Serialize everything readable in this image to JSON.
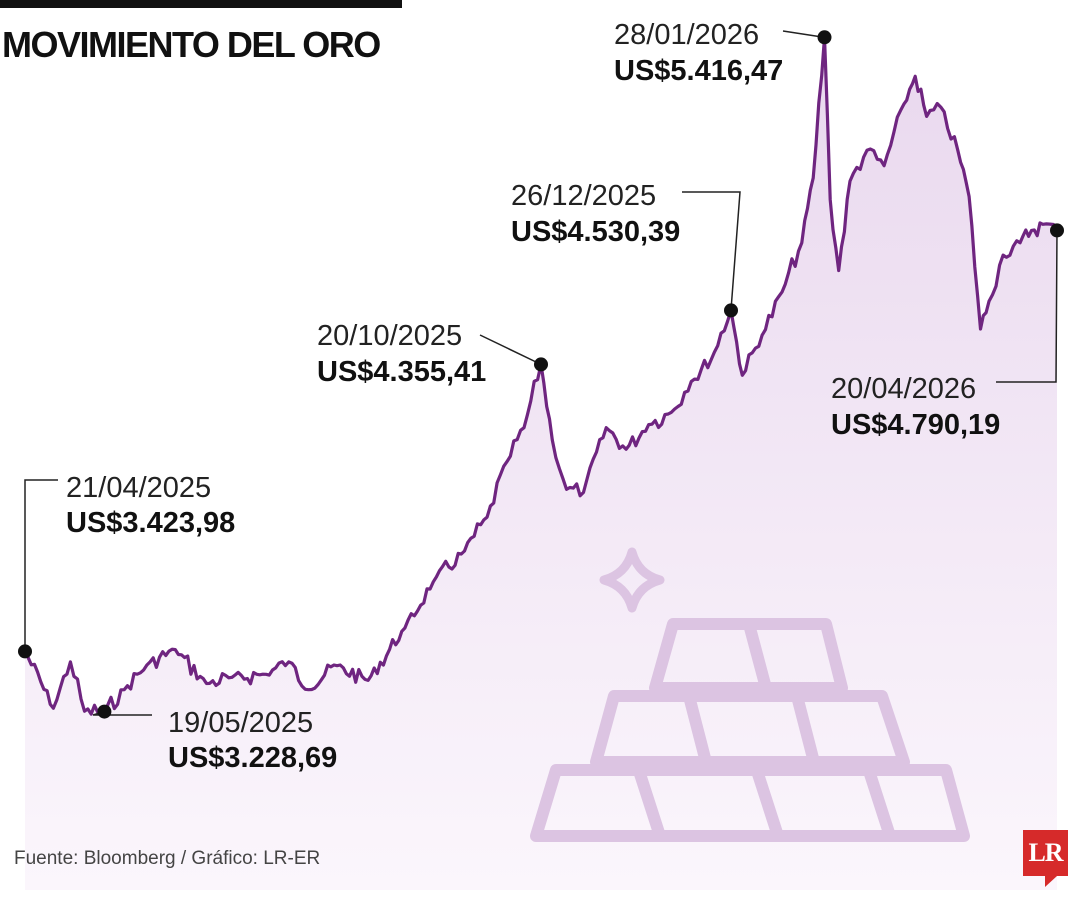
{
  "header": {
    "title": "MOVIMIENTO DEL ORO"
  },
  "footer": {
    "source": "Fuente: Bloomberg / Gráfico: LR-ER",
    "logo_text": "LR"
  },
  "colors": {
    "line": "#6f2580",
    "fill_top": "#e9d8ee",
    "fill_bottom": "#fbf6fc",
    "illustration": "#dcc4e2",
    "marker": "#111111",
    "logo": "#d62a2a"
  },
  "illustration": {
    "icons": [
      "sparkle-icon",
      "gold-bars-icon"
    ]
  },
  "chart_data": {
    "type": "area",
    "title": "MOVIMIENTO DEL ORO",
    "xlabel": "",
    "ylabel": "",
    "x_range": [
      "2025-04-21",
      "2026-04-20"
    ],
    "ylim": [
      2650,
      5450
    ],
    "grid": false,
    "legend": "none",
    "series": [
      {
        "points": [
          [
            "2025-04-21",
            3423.98
          ],
          [
            "2025-05-01",
            3240
          ],
          [
            "2025-05-07",
            3390
          ],
          [
            "2025-05-12",
            3230
          ],
          [
            "2025-05-19",
            3228.69
          ],
          [
            "2025-05-26",
            3300
          ],
          [
            "2025-06-03",
            3380
          ],
          [
            "2025-06-13",
            3430
          ],
          [
            "2025-06-24",
            3320
          ],
          [
            "2025-07-03",
            3340
          ],
          [
            "2025-07-15",
            3350
          ],
          [
            "2025-07-23",
            3390
          ],
          [
            "2025-07-30",
            3300
          ],
          [
            "2025-08-08",
            3380
          ],
          [
            "2025-08-20",
            3330
          ],
          [
            "2025-09-02",
            3500
          ],
          [
            "2025-09-12",
            3650
          ],
          [
            "2025-09-23",
            3750
          ],
          [
            "2025-10-01",
            3860
          ],
          [
            "2025-10-08",
            4040
          ],
          [
            "2025-10-14",
            4150
          ],
          [
            "2025-10-20",
            4355.41
          ],
          [
            "2025-10-24",
            4110
          ],
          [
            "2025-10-29",
            3950
          ],
          [
            "2025-11-04",
            3940
          ],
          [
            "2025-11-12",
            4150
          ],
          [
            "2025-11-19",
            4080
          ],
          [
            "2025-11-27",
            4160
          ],
          [
            "2025-12-05",
            4200
          ],
          [
            "2025-12-12",
            4300
          ],
          [
            "2025-12-19",
            4370
          ],
          [
            "2025-12-26",
            4530.39
          ],
          [
            "2025-12-30",
            4320
          ],
          [
            "2026-01-06",
            4450
          ],
          [
            "2026-01-13",
            4590
          ],
          [
            "2026-01-20",
            4750
          ],
          [
            "2026-01-24",
            4960
          ],
          [
            "2026-01-28",
            5416.47
          ],
          [
            "2026-01-30",
            4890
          ],
          [
            "2026-02-02",
            4660
          ],
          [
            "2026-02-06",
            4950
          ],
          [
            "2026-02-12",
            5050
          ],
          [
            "2026-02-18",
            5000
          ],
          [
            "2026-02-25",
            5200
          ],
          [
            "2026-03-01",
            5290
          ],
          [
            "2026-03-05",
            5160
          ],
          [
            "2026-03-10",
            5190
          ],
          [
            "2026-03-16",
            5050
          ],
          [
            "2026-03-20",
            4900
          ],
          [
            "2026-03-24",
            4470
          ],
          [
            "2026-03-27",
            4560
          ],
          [
            "2026-04-01",
            4710
          ],
          [
            "2026-04-07",
            4750
          ],
          [
            "2026-04-11",
            4790
          ],
          [
            "2026-04-15",
            4810
          ],
          [
            "2026-04-20",
            4790.19
          ]
        ]
      }
    ],
    "annotations": [
      {
        "date": "21/04/2025",
        "value": "US$3.423,98"
      },
      {
        "date": "19/05/2025",
        "value": "US$3.228,69"
      },
      {
        "date": "20/10/2025",
        "value": "US$4.355,41"
      },
      {
        "date": "26/12/2025",
        "value": "US$4.530,39"
      },
      {
        "date": "28/01/2026",
        "value": "US$5.416,47"
      },
      {
        "date": "20/04/2026",
        "value": "US$4.790,19"
      }
    ]
  }
}
